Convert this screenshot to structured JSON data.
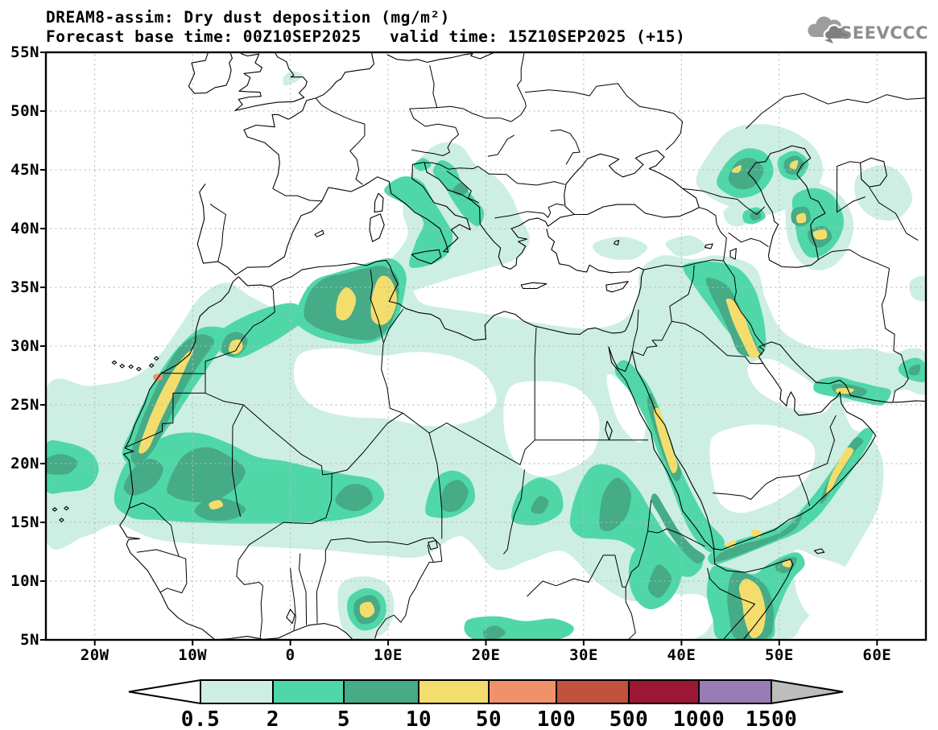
{
  "header": {
    "title": "DREAM8-assim: Dry dust deposition (mg/m²)",
    "forecast": "Forecast base time: 00Z10SEP2025",
    "valid": "valid time: 15Z10SEP2025 (+15)",
    "logo": "SEEVCCC"
  },
  "axes": {
    "lat_ticks": [
      "55N",
      "50N",
      "45N",
      "40N",
      "35N",
      "30N",
      "25N",
      "20N",
      "15N",
      "10N",
      "5N"
    ],
    "lon_ticks": [
      "20W",
      "10W",
      "0",
      "10E",
      "20E",
      "30E",
      "40E",
      "50E",
      "60E"
    ]
  },
  "colorbar": {
    "labels": [
      "0.5",
      "2",
      "5",
      "10",
      "50",
      "100",
      "500",
      "1000",
      "1500"
    ],
    "cell_colors": [
      "#cdeee3",
      "#4fd7a8",
      "#46ab87",
      "#f3de6d",
      "#ef9169",
      "#c1523e",
      "#9c1734",
      "#997cb5"
    ],
    "below_min_color": "#ffffff",
    "above_max_color": "#bdbdbd"
  },
  "chart_data": {
    "type": "heatmap",
    "title": "DREAM8-assim: Dry dust deposition (mg/m²)",
    "forecast_base_time": "00Z10SEP2025",
    "valid_time": "15Z10SEP2025 (+15)",
    "units": "mg/m²",
    "projection": "lat-lon",
    "lon_range": [
      -25,
      65
    ],
    "lat_range": [
      5,
      55
    ],
    "x_tick_labels": [
      "20W",
      "10W",
      "0",
      "10E",
      "20E",
      "30E",
      "40E",
      "50E",
      "60E"
    ],
    "y_tick_labels": [
      "5N",
      "10N",
      "15N",
      "20N",
      "25N",
      "30N",
      "35N",
      "40N",
      "45N",
      "50N",
      "55N"
    ],
    "grid": "dotted",
    "legend_position": "bottom",
    "contour_levels": [
      0.5,
      2,
      5,
      10,
      50,
      100,
      500,
      1000,
      1500
    ],
    "level_colors": {
      "0.5-2": "#cdeee3",
      "2-5": "#4fd7a8",
      "5-10": "#46ab87",
      "10-50": "#f3de6d",
      "50-100": "#ef9169",
      "100-500": "#c1523e",
      "500-1000": "#9c1734",
      "1000-1500": "#997cb5",
      ">1500": "#bdbdbd"
    },
    "hotspots": [
      {
        "area": "Western Sahara coastal band",
        "lon": -13.5,
        "lat": 25.0,
        "peak_range_mg_m2": "50-100"
      },
      {
        "area": "NE Morocco",
        "lon": -5.5,
        "lat": 29.8,
        "peak_range_mg_m2": "10-50"
      },
      {
        "area": "NE Algeria",
        "lon": 5.6,
        "lat": 33.8,
        "peak_range_mg_m2": "10-50"
      },
      {
        "area": "Tunisia",
        "lon": 9.6,
        "lat": 34.0,
        "peak_range_mg_m2": "10-50"
      },
      {
        "area": "Mali / Niger bend",
        "lon": -7.6,
        "lat": 16.5,
        "peak_range_mg_m2": "10-50"
      },
      {
        "area": "Mauritania interior",
        "lon": -9.0,
        "lat": 19.0,
        "peak_range_mg_m2": "5-10"
      },
      {
        "area": "Atlantic near Cape Verde",
        "lon": -23.0,
        "lat": 19.8,
        "peak_range_mg_m2": "5-10"
      },
      {
        "area": "Chad",
        "lon": 16.8,
        "lat": 17.3,
        "peak_range_mg_m2": "5-10"
      },
      {
        "area": "Eastern Sudan",
        "lon": 33.0,
        "lat": 16.0,
        "peak_range_mg_m2": "5-10"
      },
      {
        "area": "Ethiopian highlands",
        "lon": 38.0,
        "lat": 10.0,
        "peak_range_mg_m2": "5-10"
      },
      {
        "area": "Cameroon highlands",
        "lon": 7.9,
        "lat": 7.5,
        "peak_range_mg_m2": "10-50"
      },
      {
        "area": "Saudi Red Sea coast",
        "lon": 38.5,
        "lat": 22.0,
        "peak_range_mg_m2": "10-50"
      },
      {
        "area": "Iraq - Kuwait corridor",
        "lon": 46.5,
        "lat": 31.5,
        "peak_range_mg_m2": "10-50"
      },
      {
        "area": "Strait of Hormuz / Gulf of Oman",
        "lon": 56.7,
        "lat": 26.2,
        "peak_range_mg_m2": "10-50"
      },
      {
        "area": "Oman SE coast",
        "lon": 56.3,
        "lat": 19.4,
        "peak_range_mg_m2": "10-50"
      },
      {
        "area": "Yemen south coast",
        "lon": 45.0,
        "lat": 13.2,
        "peak_range_mg_m2": "10-50"
      },
      {
        "area": "Somalia interior",
        "lon": 47.3,
        "lat": 7.8,
        "peak_range_mg_m2": "10-50"
      },
      {
        "area": "Horn of Africa tip",
        "lon": 50.8,
        "lat": 11.5,
        "peak_range_mg_m2": "10-50"
      },
      {
        "area": "NW of Caspian Sea",
        "lon": 45.6,
        "lat": 45.1,
        "peak_range_mg_m2": "10-50"
      },
      {
        "area": "N Caspian lowland",
        "lon": 51.5,
        "lat": 45.4,
        "peak_range_mg_m2": "10-50"
      },
      {
        "area": "E Caspian (Turkmenistan)",
        "lon": 52.3,
        "lat": 40.8,
        "peak_range_mg_m2": "10-50"
      },
      {
        "area": "Karakum desert",
        "lon": 54.2,
        "lat": 39.4,
        "peak_range_mg_m2": "10-50"
      },
      {
        "area": "Adriatic / Balkans",
        "lon": 16.8,
        "lat": 43.4,
        "peak_range_mg_m2": "5-10"
      },
      {
        "area": "Southern Italy / Sicily",
        "lon": 14.5,
        "lat": 38.5,
        "peak_range_mg_m2": "2-5"
      }
    ]
  }
}
